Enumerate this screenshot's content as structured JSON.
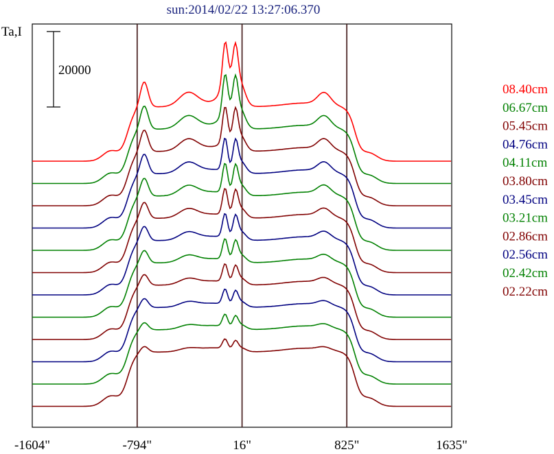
{
  "title": "sun:2014/02/22 13:27:06.370",
  "chart_data": {
    "type": "line",
    "ylabel": "Ta,I",
    "scale_bar_label": "20000",
    "x_ticks": [
      "-1604\"",
      "-794\"",
      "16\"",
      "825\"",
      "1635\""
    ],
    "xlim": [
      -1604,
      1635
    ],
    "vertical_lines": [
      -794,
      16,
      825
    ],
    "grid": false,
    "legend_position": "right",
    "series": [
      {
        "name": "08.40cm",
        "color": "#ff0000",
        "amp": 1.0,
        "min": 1.0
      },
      {
        "name": "06.67cm",
        "color": "#008000",
        "amp": 0.93,
        "min": 0.96
      },
      {
        "name": "05.45cm",
        "color": "#800000",
        "amp": 0.86,
        "min": 0.92
      },
      {
        "name": "04.76cm",
        "color": "#000080",
        "amp": 0.79,
        "min": 0.88
      },
      {
        "name": "04.11cm",
        "color": "#008000",
        "amp": 0.72,
        "min": 0.84
      },
      {
        "name": "03.80cm",
        "color": "#800000",
        "amp": 0.65,
        "min": 0.8
      },
      {
        "name": "03.45cm",
        "color": "#000080",
        "amp": 0.58,
        "min": 0.76
      },
      {
        "name": "03.21cm",
        "color": "#008000",
        "amp": 0.51,
        "min": 0.72
      },
      {
        "name": "02.86cm",
        "color": "#800000",
        "amp": 0.44,
        "min": 0.68
      },
      {
        "name": "02.56cm",
        "color": "#000080",
        "amp": 0.37,
        "min": 0.64
      },
      {
        "name": "02.42cm",
        "color": "#008000",
        "amp": 0.3,
        "min": 0.6
      },
      {
        "name": "02.22cm",
        "color": "#800000",
        "amp": 0.24,
        "min": 0.56
      }
    ]
  }
}
